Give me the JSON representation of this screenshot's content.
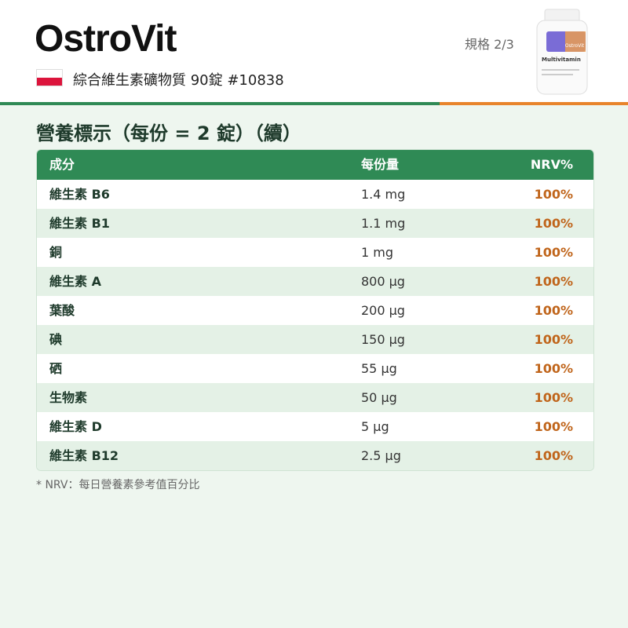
{
  "header": {
    "brand": "OstroVit",
    "product": "綜合維生素礦物質 90錠 #10838",
    "page": "規格 2/3",
    "bottle": {
      "brand": "OstroVit",
      "name": "Multivitamin"
    }
  },
  "section_title": "營養標示（每份 = 2 錠）（續）",
  "table": {
    "columns": [
      "成分",
      "每份量",
      "NRV%"
    ],
    "rows": [
      [
        "維生素 B6",
        "1.4 mg",
        "100%"
      ],
      [
        "維生素 B1",
        "1.1 mg",
        "100%"
      ],
      [
        "銅",
        "1 mg",
        "100%"
      ],
      [
        "維生素 A",
        "800 µg",
        "100%"
      ],
      [
        "葉酸",
        "200 µg",
        "100%"
      ],
      [
        "碘",
        "150 µg",
        "100%"
      ],
      [
        "硒",
        "55 µg",
        "100%"
      ],
      [
        "生物素",
        "50 µg",
        "100%"
      ],
      [
        "維生素 D",
        "5 µg",
        "100%"
      ],
      [
        "維生素 B12",
        "2.5 µg",
        "100%"
      ]
    ]
  },
  "footnote": "* NRV：每日營養素參考值百分比"
}
